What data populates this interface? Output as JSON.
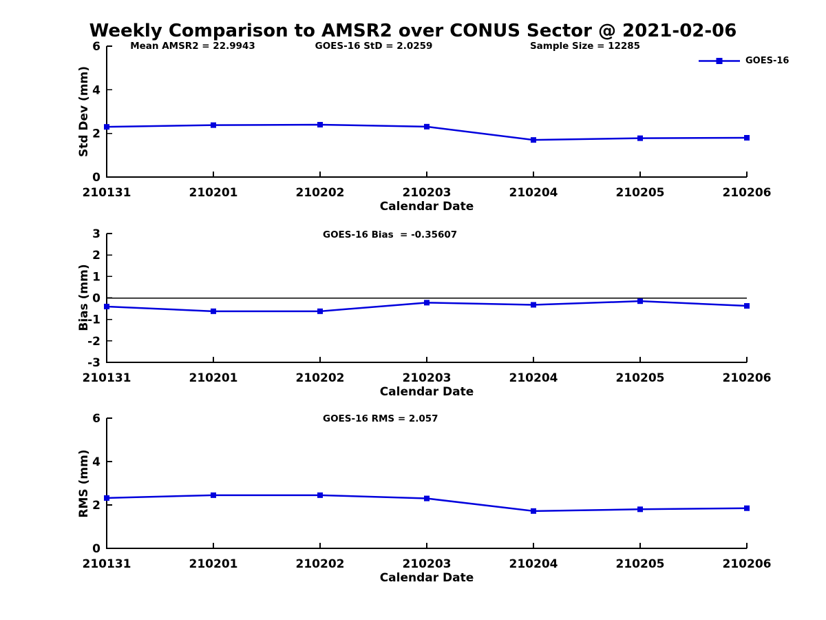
{
  "title": "Weekly Comparison to AMSR2 over CONUS Sector @ 2021-02-06",
  "annotations": {
    "mean_amsr2": "Mean AMSR2 = 22.9943",
    "goes16_std": "GOES-16 StD = 2.0259",
    "sample_size": "Sample Size = 12285"
  },
  "legend": {
    "label": "GOES-16"
  },
  "colors": {
    "series_line": "#0000dd",
    "series_marker": "#0000dd",
    "axis": "#000000",
    "text": "#000000",
    "zero_line": "#000000",
    "background": "#ffffff"
  },
  "chart_data": [
    {
      "type": "line",
      "title": "",
      "ylabel": "Std Dev (mm)",
      "xlabel": "Calendar Date",
      "categories": [
        "210131",
        "210201",
        "210202",
        "210203",
        "210204",
        "210205",
        "210206"
      ],
      "series": [
        {
          "name": "GOES-16",
          "values": [
            2.3,
            2.38,
            2.4,
            2.31,
            1.7,
            1.78,
            1.8
          ]
        }
      ],
      "ylim": [
        0,
        6
      ],
      "yticks": [
        0,
        2,
        4,
        6
      ],
      "zero_line": false,
      "grid": false,
      "legend_position": "top-right-outside"
    },
    {
      "type": "line",
      "title": "GOES-16 Bias  = -0.35607",
      "ylabel": "Bias (mm)",
      "xlabel": "Calendar Date",
      "categories": [
        "210131",
        "210201",
        "210202",
        "210203",
        "210204",
        "210205",
        "210206"
      ],
      "series": [
        {
          "name": "GOES-16",
          "values": [
            -0.4,
            -0.62,
            -0.62,
            -0.22,
            -0.32,
            -0.15,
            -0.37
          ]
        }
      ],
      "ylim": [
        -3,
        3
      ],
      "yticks": [
        -3,
        -2,
        -1,
        0,
        1,
        2,
        3
      ],
      "zero_line": true,
      "grid": false,
      "legend_position": "none"
    },
    {
      "type": "line",
      "title": "GOES-16 RMS = 2.057",
      "ylabel": "RMS (mm)",
      "xlabel": "Calendar Date",
      "categories": [
        "210131",
        "210201",
        "210202",
        "210203",
        "210204",
        "210205",
        "210206"
      ],
      "series": [
        {
          "name": "GOES-16",
          "values": [
            2.32,
            2.45,
            2.45,
            2.3,
            1.72,
            1.8,
            1.85
          ]
        }
      ],
      "ylim": [
        0,
        6
      ],
      "yticks": [
        0,
        2,
        4,
        6
      ],
      "zero_line": false,
      "grid": false,
      "legend_position": "none"
    }
  ]
}
